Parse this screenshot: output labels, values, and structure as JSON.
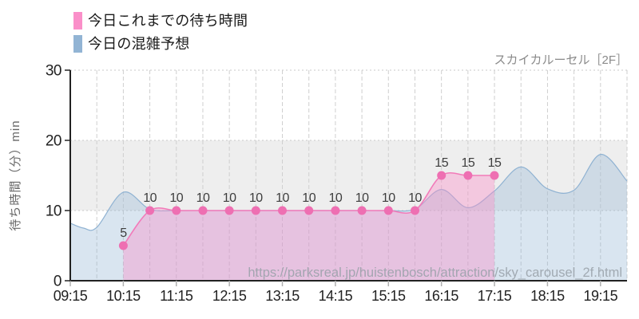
{
  "page": {
    "background": "#ffffff"
  },
  "legend": {
    "items": [
      {
        "label": "今日これまでの待ち時間",
        "color": "#fa8fc9"
      },
      {
        "label": "今日の混雑予想",
        "color": "#92b4d4"
      }
    ]
  },
  "chart_data": {
    "type": "area",
    "title": "スカイカルーセル［2F］",
    "ylabel": "待ち時間（分）min",
    "ylim": [
      0,
      30
    ],
    "yticks": [
      0,
      10,
      20,
      30
    ],
    "xticks": [
      "09:15",
      "10:15",
      "11:15",
      "12:15",
      "13:15",
      "14:15",
      "15:15",
      "16:15",
      "17:15",
      "18:15",
      "19:15"
    ],
    "x_range": [
      "09:15",
      "19:45"
    ],
    "grid": {
      "vertical_every_minutes": 30,
      "horizontal_at": [
        10,
        20,
        30
      ],
      "band_10_to_20_color": "#eeeeee"
    },
    "series": [
      {
        "name": "今日の混雑予想",
        "kind": "forecast-smooth-area",
        "line_color": "#8fb2d2",
        "fill_color": "#92b4d4",
        "fill_opacity": 0.35,
        "points": [
          [
            "09:15",
            8.2
          ],
          [
            "09:30",
            7.5
          ],
          [
            "09:45",
            7.6
          ],
          [
            "10:15",
            12.6
          ],
          [
            "10:45",
            10.2
          ],
          [
            "11:15",
            10
          ],
          [
            "11:45",
            10
          ],
          [
            "12:15",
            10
          ],
          [
            "12:45",
            10
          ],
          [
            "13:15",
            10
          ],
          [
            "13:45",
            10
          ],
          [
            "14:15",
            10
          ],
          [
            "14:45",
            10
          ],
          [
            "15:15",
            10
          ],
          [
            "15:45",
            10.2
          ],
          [
            "16:15",
            13
          ],
          [
            "16:45",
            10.4
          ],
          [
            "17:15",
            12.8
          ],
          [
            "17:45",
            16.2
          ],
          [
            "18:15",
            13.1
          ],
          [
            "18:45",
            12.9
          ],
          [
            "19:15",
            18
          ],
          [
            "19:45",
            14.2
          ]
        ]
      },
      {
        "name": "今日これまでの待ち時間",
        "kind": "actual-line-markers-area",
        "line_color": "#f27ab9",
        "marker_color": "#ee6fb2",
        "fill_color": "#f98fc9",
        "fill_opacity": 0.4,
        "points": [
          [
            "10:15",
            5
          ],
          [
            "10:45",
            10
          ],
          [
            "11:15",
            10
          ],
          [
            "11:45",
            10
          ],
          [
            "12:15",
            10
          ],
          [
            "12:45",
            10
          ],
          [
            "13:15",
            10
          ],
          [
            "13:45",
            10
          ],
          [
            "14:15",
            10
          ],
          [
            "14:45",
            10
          ],
          [
            "15:15",
            10
          ],
          [
            "15:45",
            10
          ],
          [
            "16:15",
            15
          ],
          [
            "16:45",
            15
          ],
          [
            "17:15",
            15
          ]
        ],
        "point_labels": [
          "5",
          "10",
          "10",
          "10",
          "10",
          "10",
          "10",
          "10",
          "10",
          "10",
          "10",
          "10",
          "15",
          "15",
          "15"
        ]
      }
    ],
    "watermark": "https://parksreal.jp/huistenbosch/attraction/sky_carousel_2f.html"
  }
}
